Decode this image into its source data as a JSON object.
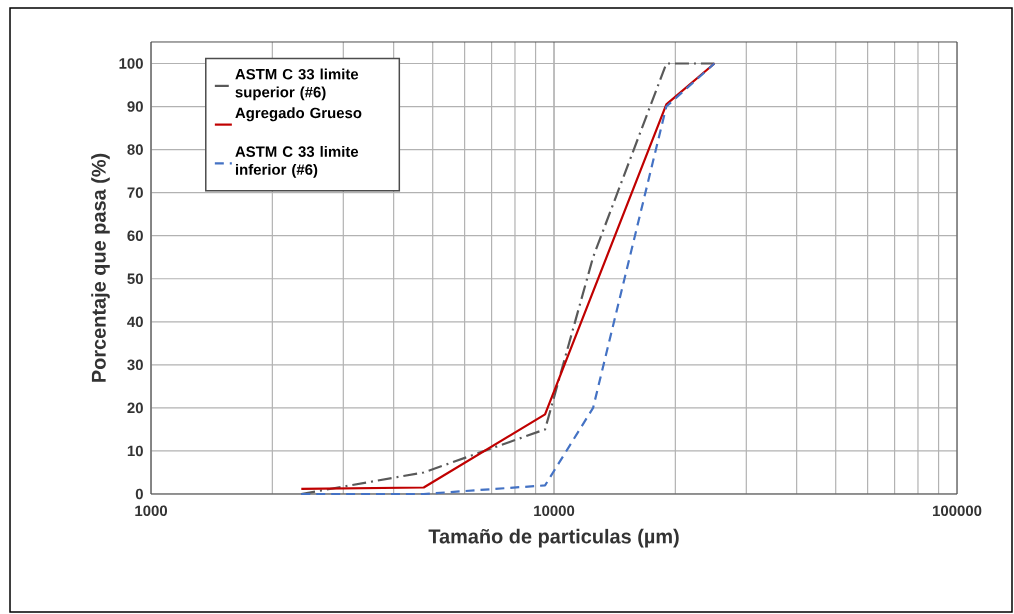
{
  "chart_data": {
    "type": "line",
    "xlabel": "Tamaño de particulas (µm)",
    "ylabel": "Porcentaje que pasa (%)",
    "log": "x",
    "grid": true,
    "legend": "top left",
    "xlim": [
      1000,
      100000
    ],
    "ylim": [
      0,
      105
    ],
    "xticks": [
      1000,
      10000,
      100000
    ],
    "yticks": [
      0,
      10,
      20,
      30,
      40,
      50,
      60,
      70,
      80,
      90,
      100
    ],
    "series": [
      {
        "name": "ASTM C 33 limite superior (#6)",
        "color": "#595959",
        "line_style": "dashdot",
        "x": [
          2360,
          4750,
          9500,
          12500,
          19000,
          25000
        ],
        "values": [
          0,
          5,
          15,
          55,
          100,
          100
        ]
      },
      {
        "name": "Agregado Grueso",
        "color": "#c00000",
        "line_style": "solid",
        "x": [
          2360,
          4750,
          9500,
          19000,
          25000
        ],
        "values": [
          1.2,
          1.5,
          18.5,
          90.5,
          100
        ]
      },
      {
        "name": "ASTM C 33 limite inferior (#6)",
        "color": "#4472c4",
        "line_style": "dashed",
        "x": [
          2360,
          4750,
          9500,
          12500,
          19000,
          25000
        ],
        "values": [
          0,
          0,
          2,
          20,
          90,
          100
        ]
      }
    ]
  }
}
